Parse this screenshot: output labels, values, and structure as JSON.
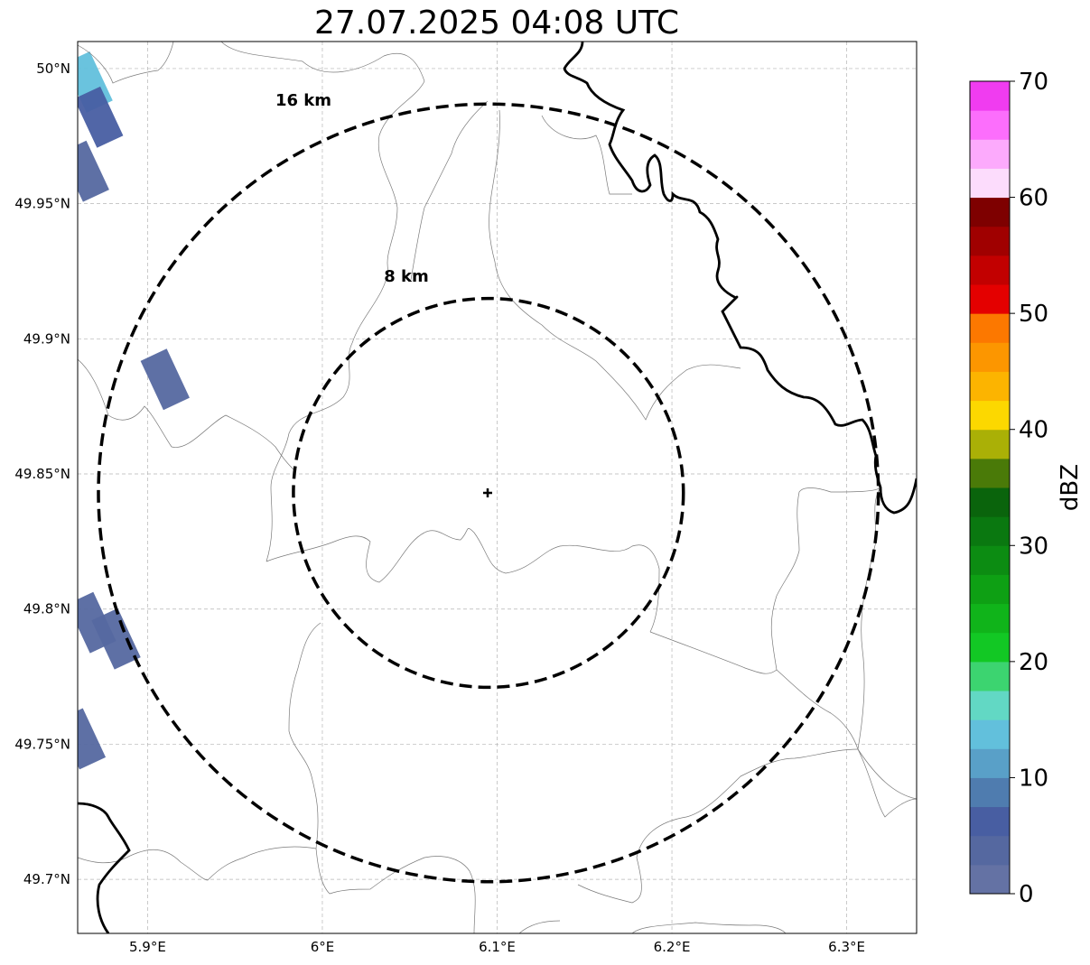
{
  "title": "27.07.2025 04:08 UTC",
  "map": {
    "lon_range": [
      5.86,
      6.34
    ],
    "lat_range": [
      49.68,
      50.01
    ],
    "x_ticks": [
      {
        "lon": 5.9,
        "label": "5.9°E"
      },
      {
        "lon": 6.0,
        "label": "6°E"
      },
      {
        "lon": 6.1,
        "label": "6.1°E"
      },
      {
        "lon": 6.2,
        "label": "6.2°E"
      },
      {
        "lon": 6.3,
        "label": "6.3°E"
      }
    ],
    "y_ticks": [
      {
        "lat": 50.0,
        "label": "50°N"
      },
      {
        "lat": 49.95,
        "label": "49.95°N"
      },
      {
        "lat": 49.9,
        "label": "49.9°N"
      },
      {
        "lat": 49.85,
        "label": "49.85°N"
      },
      {
        "lat": 49.8,
        "label": "49.8°N"
      },
      {
        "lat": 49.75,
        "label": "49.75°N"
      },
      {
        "lat": 49.7,
        "label": "49.7°N"
      }
    ],
    "center": {
      "lon": 6.095,
      "lat": 49.843
    },
    "range_rings": [
      {
        "label": "8 km",
        "radius_km": 8
      },
      {
        "label": "16 km",
        "radius_km": 16
      }
    ],
    "rain_cells": [
      {
        "lon": 5.866,
        "lat": 49.995,
        "dbz": 14
      },
      {
        "lon": 5.872,
        "lat": 49.982,
        "dbz": 6
      },
      {
        "lon": 5.864,
        "lat": 49.962,
        "dbz": 4
      },
      {
        "lon": 5.91,
        "lat": 49.885,
        "dbz": 4
      },
      {
        "lon": 5.868,
        "lat": 49.795,
        "dbz": 3
      },
      {
        "lon": 5.882,
        "lat": 49.789,
        "dbz": 4
      },
      {
        "lon": 5.862,
        "lat": 49.752,
        "dbz": 3
      }
    ]
  },
  "colorbar": {
    "label": "dBZ",
    "min": 0,
    "max": 70,
    "ticks": [
      "0",
      "10",
      "20",
      "30",
      "40",
      "50",
      "60",
      "70"
    ],
    "colors": [
      "#6472a4",
      "#5568a0",
      "#485ea2",
      "#4f7caf",
      "#59a0c8",
      "#62c0dc",
      "#62d8c4",
      "#3cd470",
      "#12c824",
      "#10b41a",
      "#0ea014",
      "#0c8c12",
      "#0a7810",
      "#0a640c",
      "#4a7a08",
      "#aab006",
      "#fcd800",
      "#fcb400",
      "#fc9600",
      "#fc7800",
      "#e40000",
      "#c20000",
      "#a00000",
      "#7e0000",
      "#fcdcfc",
      "#fcaafc",
      "#fc6efc",
      "#f03cf0"
    ]
  }
}
